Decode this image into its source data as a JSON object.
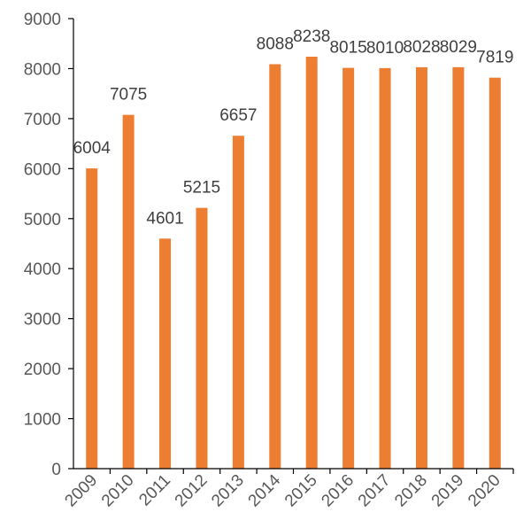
{
  "chart_data": {
    "type": "bar",
    "title": "",
    "xlabel": "",
    "ylabel": "",
    "categories": [
      "2009",
      "2010",
      "2011",
      "2012",
      "2013",
      "2014",
      "2015",
      "2016",
      "2017",
      "2018",
      "2019",
      "2020"
    ],
    "values": [
      6004,
      7075,
      4601,
      5215,
      6657,
      8088,
      8238,
      8015,
      8010,
      8028,
      8029,
      7819
    ],
    "data_labels": [
      "6004",
      "7075",
      "4601",
      "5215",
      "6657",
      "8088",
      "8238",
      "8015",
      "8010",
      "8028",
      "8029",
      "7819"
    ],
    "y_ticks": [
      0,
      1000,
      2000,
      3000,
      4000,
      5000,
      6000,
      7000,
      8000,
      9000
    ],
    "y_tick_labels": [
      "0",
      "1000",
      "2000",
      "3000",
      "4000",
      "5000",
      "6000",
      "7000",
      "8000",
      "9000"
    ],
    "ylim": [
      0,
      9000
    ],
    "grid": false,
    "legend": "none",
    "bar_color": "#ED7D31"
  }
}
